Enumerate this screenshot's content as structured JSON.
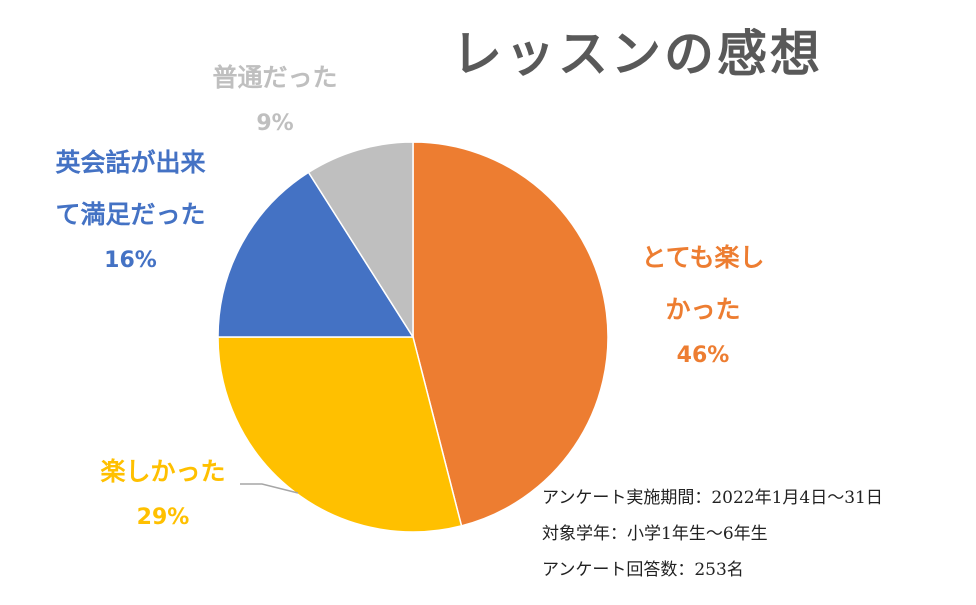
{
  "chart_data": {
    "type": "pie",
    "title": "レッスンの感想",
    "slices": [
      {
        "label_lines": [
          "とても楽し",
          "かった"
        ],
        "value": 46,
        "value_label": "46%",
        "color": "#ED7D31"
      },
      {
        "label_lines": [
          "楽しかった"
        ],
        "value": 29,
        "value_label": "29%",
        "color": "#FFC000"
      },
      {
        "label_lines": [
          "英会話が出来",
          "て満足だった"
        ],
        "value": 16,
        "value_label": "16%",
        "color": "#4472C4"
      },
      {
        "label_lines": [
          "普通だった"
        ],
        "value": 9,
        "value_label": "9%",
        "color": "#BFBFBF"
      }
    ],
    "start": "12 o'clock",
    "direction": "clockwise",
    "legend": "none"
  },
  "notes": [
    "アンケート実施期間：2022年1月4日～31日",
    "対象学年：小学1年生～6年生",
    "アンケート回答数：253名"
  ]
}
